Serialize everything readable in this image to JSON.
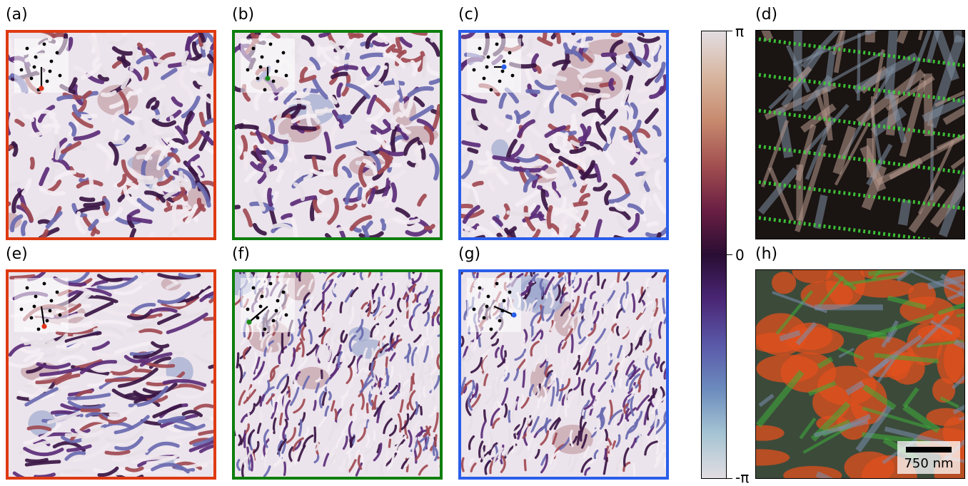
{
  "panels": [
    {
      "label": "(a)",
      "frame": "#de3a12",
      "style": "mixed",
      "dot": "#e0341a",
      "line": [
        0,
        -30
      ]
    },
    {
      "label": "(b)",
      "frame": "#0e7e0e",
      "style": "mixed",
      "dot": "#1a8a1a",
      "line": [
        0,
        -16
      ]
    },
    {
      "label": "(c)",
      "frame": "#2a5eea",
      "style": "mixed",
      "dot": "#2a5eea",
      "line": [
        14,
        0
      ]
    },
    {
      "label": "(e)",
      "frame": "#de3a12",
      "style": "stripes_wide",
      "dot": "#e0341a",
      "line": [
        4,
        -28
      ]
    },
    {
      "label": "(f)",
      "frame": "#0e7e0e",
      "style": "stripes_fine",
      "dot": "#1a8a1a",
      "line": [
        -26,
        -22
      ]
    },
    {
      "label": "(g)",
      "frame": "#2a5eea",
      "style": "stripes_fine",
      "dot": "#2a5eea",
      "line": [
        28,
        -12
      ]
    }
  ],
  "rgb_panels": [
    {
      "label": "(d)"
    },
    {
      "label": "(h)"
    }
  ],
  "colorbar": {
    "top_label": "π",
    "mid_label": "0",
    "bottom_label": "-π"
  },
  "scalebar": {
    "text": "750 nm"
  }
}
